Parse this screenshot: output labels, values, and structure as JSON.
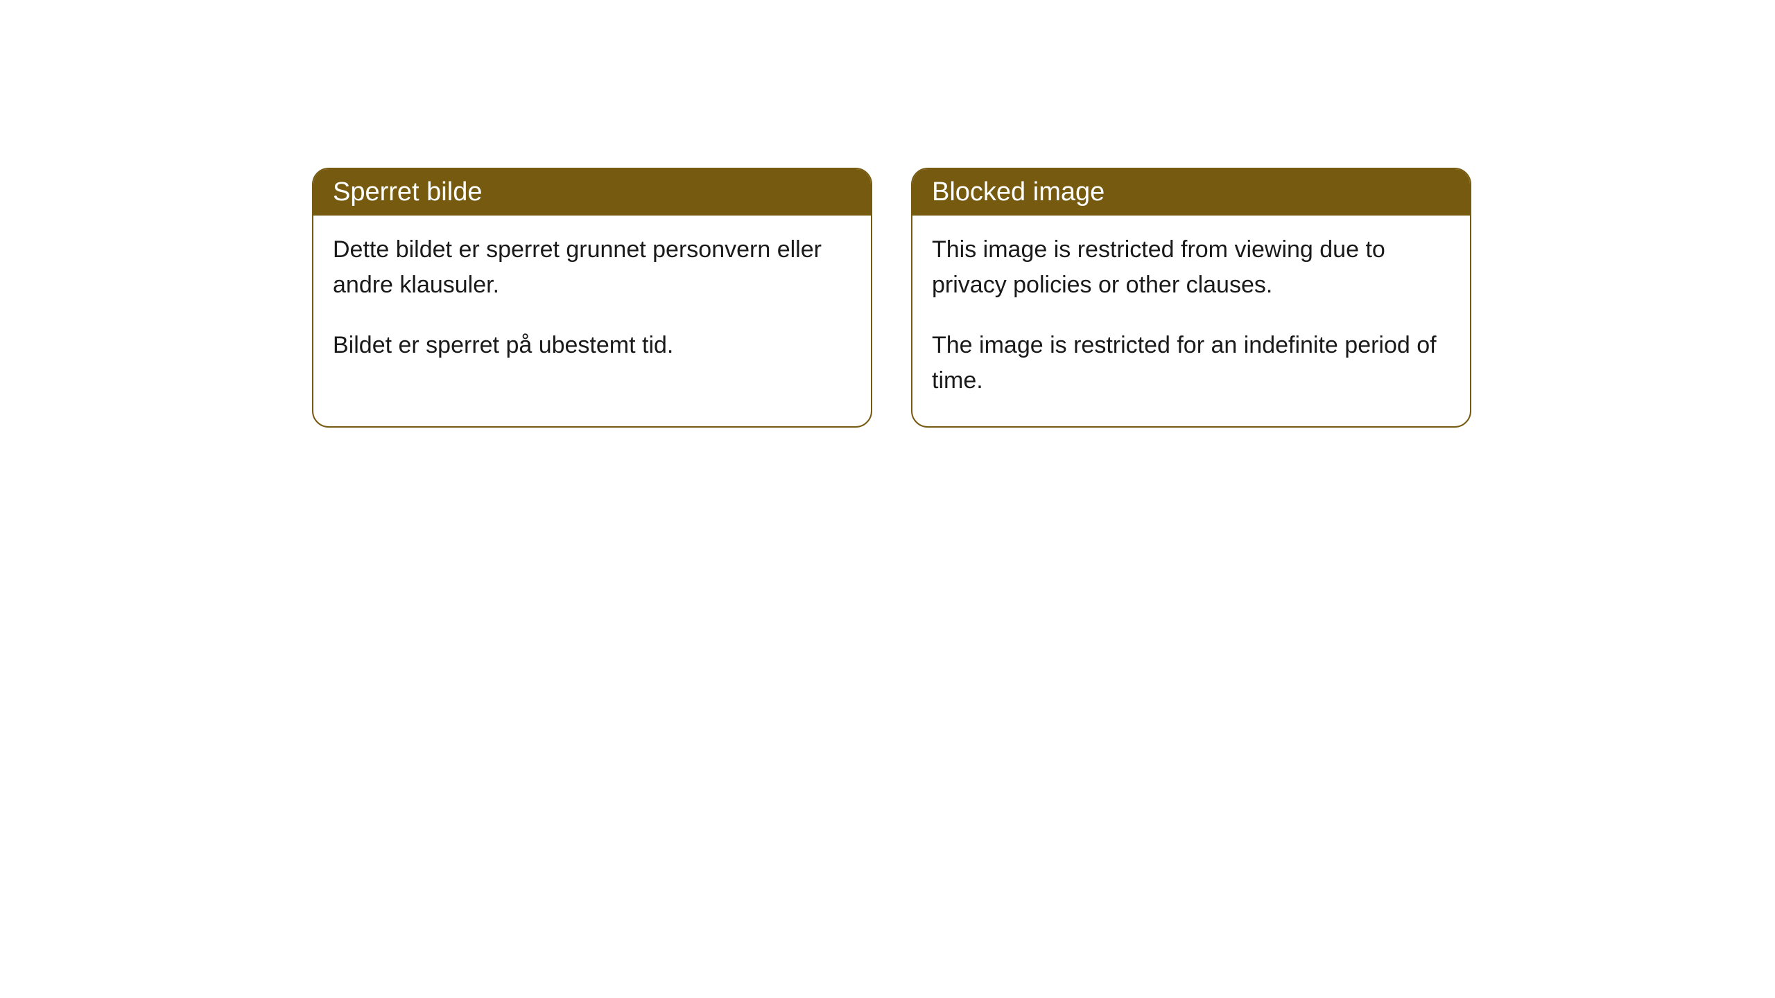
{
  "cards": [
    {
      "title": "Sperret bilde",
      "paragraph1": "Dette bildet er sperret grunnet personvern eller andre klausuler.",
      "paragraph2": "Bildet er sperret på ubestemt tid."
    },
    {
      "title": "Blocked image",
      "paragraph1": "This image is restricted from viewing due to privacy policies or other clauses.",
      "paragraph2": "The image is restricted for an indefinite period of time."
    }
  ],
  "styling": {
    "header_bg_color": "#765a10",
    "header_text_color": "#ffffff",
    "border_color": "#765a10",
    "body_bg_color": "#ffffff",
    "body_text_color": "#1a1a1a",
    "border_radius": 24,
    "header_fontsize": 38,
    "body_fontsize": 34
  }
}
